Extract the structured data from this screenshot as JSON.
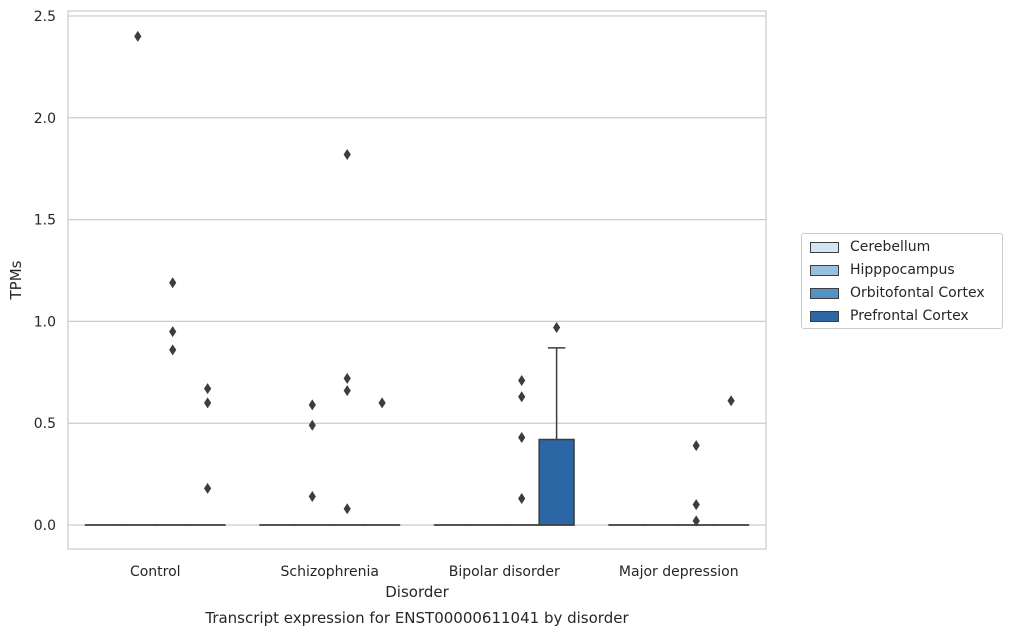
{
  "chart_data": {
    "type": "box",
    "title": "Transcript expression for ENST00000611041 by disorder",
    "xlabel": "Disorder",
    "ylabel": "TPMs",
    "categories": [
      "Control",
      "Schizophrenia",
      "Bipolar disorder",
      "Major depression"
    ],
    "ylim": [
      -0.12,
      2.53
    ],
    "yticks": [
      0.0,
      0.5,
      1.0,
      1.5,
      2.0,
      2.5
    ],
    "ytick_labels": [
      "0.0",
      "0.5",
      "1.0",
      "1.5",
      "2.0",
      "2.5"
    ],
    "grid": "horizontal",
    "legend_position": "right",
    "series": [
      {
        "name": "Cerebellum",
        "color": "#d5e4f2",
        "boxes": [
          {
            "q1": 0,
            "median": 0,
            "q3": 0,
            "whisker_low": 0,
            "whisker_high": 0,
            "outliers": []
          },
          {
            "q1": 0,
            "median": 0,
            "q3": 0,
            "whisker_low": 0,
            "whisker_high": 0,
            "outliers": []
          },
          {
            "q1": 0,
            "median": 0,
            "q3": 0,
            "whisker_low": 0,
            "whisker_high": 0,
            "outliers": []
          },
          {
            "q1": 0,
            "median": 0,
            "q3": 0,
            "whisker_low": 0,
            "whisker_high": 0,
            "outliers": []
          }
        ]
      },
      {
        "name": "Hipppocampus",
        "color": "#97c0dc",
        "boxes": [
          {
            "q1": 0,
            "median": 0,
            "q3": 0,
            "whisker_low": 0,
            "whisker_high": 0,
            "outliers": [
              2.4
            ]
          },
          {
            "q1": 0,
            "median": 0,
            "q3": 0,
            "whisker_low": 0,
            "whisker_high": 0,
            "outliers": [
              0.59,
              0.49,
              0.14
            ]
          },
          {
            "q1": 0,
            "median": 0,
            "q3": 0,
            "whisker_low": 0,
            "whisker_high": 0,
            "outliers": []
          },
          {
            "q1": 0,
            "median": 0,
            "q3": 0,
            "whisker_low": 0,
            "whisker_high": 0,
            "outliers": []
          }
        ]
      },
      {
        "name": "Orbitofontal Cortex",
        "color": "#5393c3",
        "boxes": [
          {
            "q1": 0,
            "median": 0,
            "q3": 0,
            "whisker_low": 0,
            "whisker_high": 0,
            "outliers": [
              1.19,
              0.95,
              0.86
            ]
          },
          {
            "q1": 0,
            "median": 0,
            "q3": 0,
            "whisker_low": 0,
            "whisker_high": 0,
            "outliers": [
              1.82,
              0.72,
              0.66,
              0.08
            ]
          },
          {
            "q1": 0,
            "median": 0,
            "q3": 0,
            "whisker_low": 0,
            "whisker_high": 0,
            "outliers": [
              0.71,
              0.63,
              0.43,
              0.13
            ]
          },
          {
            "q1": 0,
            "median": 0,
            "q3": 0,
            "whisker_low": 0,
            "whisker_high": 0,
            "outliers": [
              0.39,
              0.1,
              0.02
            ]
          }
        ]
      },
      {
        "name": "Prefrontal Cortex",
        "color": "#2a67a4",
        "boxes": [
          {
            "q1": 0,
            "median": 0,
            "q3": 0,
            "whisker_low": 0,
            "whisker_high": 0,
            "outliers": [
              0.67,
              0.6,
              0.18
            ]
          },
          {
            "q1": 0,
            "median": 0,
            "q3": 0,
            "whisker_low": 0,
            "whisker_high": 0,
            "outliers": [
              0.6
            ]
          },
          {
            "q1": 0,
            "median": 0,
            "q3": 0.42,
            "whisker_low": 0,
            "whisker_high": 0.87,
            "outliers": [
              0.97
            ]
          },
          {
            "q1": 0,
            "median": 0,
            "q3": 0,
            "whisker_low": 0,
            "whisker_high": 0,
            "outliers": [
              0.61
            ]
          }
        ]
      }
    ]
  }
}
